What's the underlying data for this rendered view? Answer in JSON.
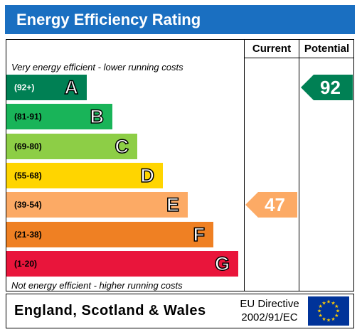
{
  "header": {
    "title": "Energy Efficiency Rating"
  },
  "columns": {
    "current": "Current",
    "potential": "Potential"
  },
  "captions": {
    "top": "Very energy efficient - lower running costs",
    "bottom": "Not energy efficient - higher running costs"
  },
  "chart_data": {
    "type": "bar",
    "title": "Energy Efficiency Rating",
    "bands": [
      {
        "range": "(92+)",
        "letter": "A",
        "color": "#008054"
      },
      {
        "range": "(81-91)",
        "letter": "B",
        "color": "#19b459"
      },
      {
        "range": "(69-80)",
        "letter": "C",
        "color": "#8dce46"
      },
      {
        "range": "(55-68)",
        "letter": "D",
        "color": "#ffd500"
      },
      {
        "range": "(39-54)",
        "letter": "E",
        "color": "#fcaa65"
      },
      {
        "range": "(21-38)",
        "letter": "F",
        "color": "#ef8023"
      },
      {
        "range": "(1-20)",
        "letter": "G",
        "color": "#e9153b"
      }
    ],
    "current": {
      "value": 47,
      "band": "E",
      "color": "#fcaa65"
    },
    "potential": {
      "value": 92,
      "band": "A",
      "color": "#008054"
    }
  },
  "footer": {
    "country": "England, Scotland & Wales",
    "directive_line1": "EU Directive",
    "directive_line2": "2002/91/EC",
    "flag_icon": "eu-flag-icon",
    "flag_color": "#003399",
    "star_color": "#ffcc00"
  }
}
